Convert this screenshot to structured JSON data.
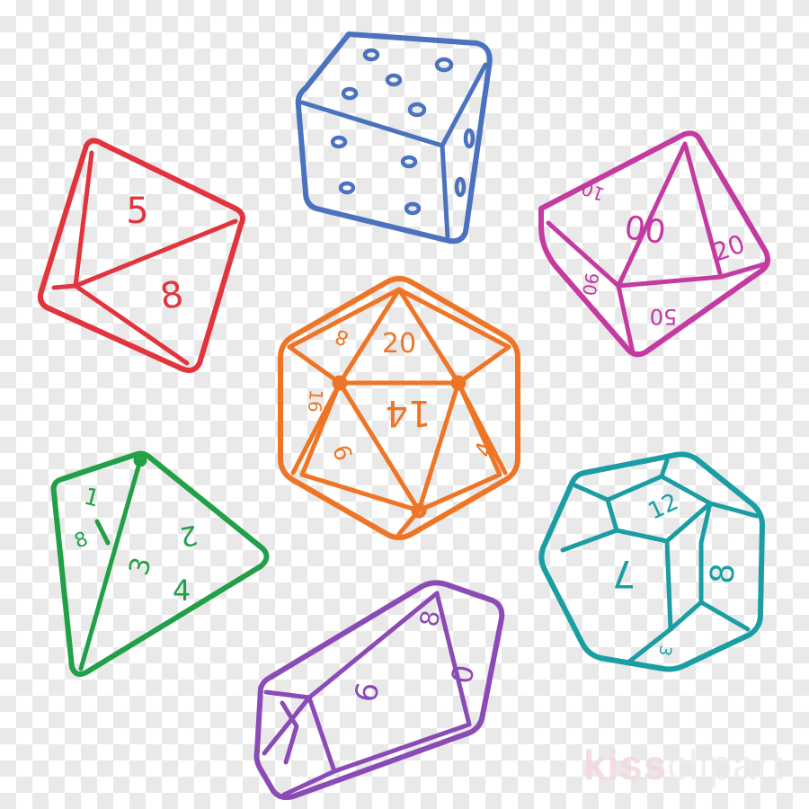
{
  "colors": {
    "d6": "#4a72be",
    "d8": "#e2343c",
    "d10": "#c43aa0",
    "d20": "#ee7526",
    "d4": "#22a048",
    "d12": "#1a9ea3",
    "d10b": "#8a4bb6",
    "background_check": "#e9e9e9"
  },
  "dice": {
    "d8": {
      "numbers": [
        "5",
        "8"
      ]
    },
    "d10": {
      "numbers": [
        "00",
        "20",
        "50",
        "10",
        "90"
      ]
    },
    "d20": {
      "numbers": [
        "20",
        "14",
        "4",
        "6",
        "8",
        "16"
      ]
    },
    "d4": {
      "numbers": [
        "1",
        "2",
        "3",
        "4",
        "8"
      ]
    },
    "d12": {
      "numbers": [
        "12",
        "7",
        "8",
        "3"
      ]
    },
    "d10b": {
      "numbers": [
        "8",
        "0",
        "6"
      ]
    }
  },
  "watermark": {
    "brand": "kiss",
    "rest": "clipart"
  }
}
